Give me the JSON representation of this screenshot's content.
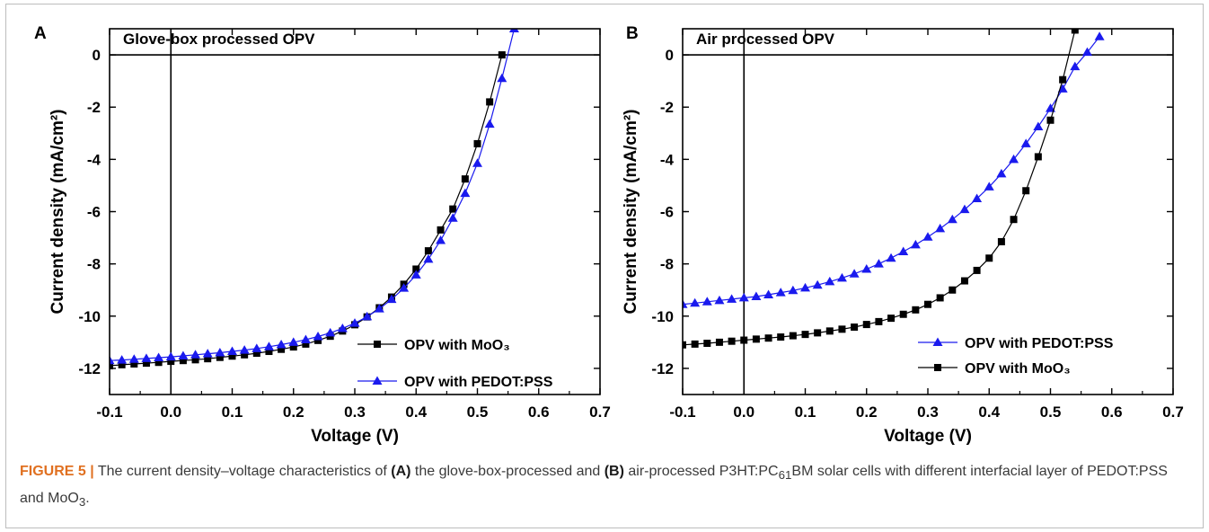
{
  "chart_data": [
    {
      "type": "line",
      "panel_label": "A",
      "inset_title": "Glove-box processed OPV",
      "xlabel": "Voltage (V)",
      "ylabel": "Current density (mA/cm²)",
      "xlim": [
        -0.1,
        0.7
      ],
      "ylim": [
        -13,
        1
      ],
      "xticks": [
        "-0.1",
        "0.0",
        "0.1",
        "0.2",
        "0.3",
        "0.4",
        "0.5",
        "0.6",
        "0.7"
      ],
      "yticks": [
        "0",
        "-2",
        "-4",
        "-6",
        "-8",
        "-10",
        "-12"
      ],
      "legend_position": "bottom-right",
      "series": [
        {
          "name": "OPV with MoO₃",
          "marker": "square",
          "color": "#000000",
          "points": [
            [
              -0.1,
              -11.9
            ],
            [
              -0.08,
              -11.86
            ],
            [
              -0.06,
              -11.83
            ],
            [
              -0.04,
              -11.8
            ],
            [
              -0.02,
              -11.77
            ],
            [
              0.0,
              -11.73
            ],
            [
              0.02,
              -11.7
            ],
            [
              0.04,
              -11.67
            ],
            [
              0.06,
              -11.63
            ],
            [
              0.08,
              -11.58
            ],
            [
              0.1,
              -11.53
            ],
            [
              0.12,
              -11.48
            ],
            [
              0.14,
              -11.42
            ],
            [
              0.16,
              -11.35
            ],
            [
              0.18,
              -11.27
            ],
            [
              0.2,
              -11.18
            ],
            [
              0.22,
              -11.07
            ],
            [
              0.24,
              -10.93
            ],
            [
              0.26,
              -10.77
            ],
            [
              0.28,
              -10.57
            ],
            [
              0.3,
              -10.33
            ],
            [
              0.32,
              -10.03
            ],
            [
              0.34,
              -9.68
            ],
            [
              0.36,
              -9.27
            ],
            [
              0.38,
              -8.78
            ],
            [
              0.4,
              -8.2
            ],
            [
              0.42,
              -7.5
            ],
            [
              0.44,
              -6.7
            ],
            [
              0.46,
              -5.9
            ],
            [
              0.48,
              -4.75
            ],
            [
              0.5,
              -3.4
            ],
            [
              0.52,
              -1.8
            ],
            [
              0.54,
              0.0
            ]
          ]
        },
        {
          "name": "OPV with PEDOT:PSS",
          "marker": "triangle",
          "color": "#1a1aee",
          "points": [
            [
              -0.1,
              -11.7
            ],
            [
              -0.08,
              -11.68
            ],
            [
              -0.06,
              -11.65
            ],
            [
              -0.04,
              -11.62
            ],
            [
              -0.02,
              -11.59
            ],
            [
              0.0,
              -11.56
            ],
            [
              0.02,
              -11.52
            ],
            [
              0.04,
              -11.48
            ],
            [
              0.06,
              -11.44
            ],
            [
              0.08,
              -11.4
            ],
            [
              0.1,
              -11.35
            ],
            [
              0.12,
              -11.3
            ],
            [
              0.14,
              -11.24
            ],
            [
              0.16,
              -11.17
            ],
            [
              0.18,
              -11.09
            ],
            [
              0.2,
              -11.0
            ],
            [
              0.22,
              -10.9
            ],
            [
              0.24,
              -10.78
            ],
            [
              0.26,
              -10.64
            ],
            [
              0.28,
              -10.47
            ],
            [
              0.3,
              -10.27
            ],
            [
              0.32,
              -10.02
            ],
            [
              0.34,
              -9.72
            ],
            [
              0.36,
              -9.36
            ],
            [
              0.38,
              -8.93
            ],
            [
              0.4,
              -8.42
            ],
            [
              0.42,
              -7.82
            ],
            [
              0.44,
              -7.1
            ],
            [
              0.46,
              -6.25
            ],
            [
              0.48,
              -5.3
            ],
            [
              0.5,
              -4.15
            ],
            [
              0.52,
              -2.65
            ],
            [
              0.54,
              -0.9
            ],
            [
              0.56,
              1.0
            ]
          ]
        }
      ]
    },
    {
      "type": "line",
      "panel_label": "B",
      "inset_title": "Air processed OPV",
      "xlabel": "Voltage (V)",
      "ylabel": "Current density (mA/cm²)",
      "xlim": [
        -0.1,
        0.7
      ],
      "ylim": [
        -13,
        1
      ],
      "xticks": [
        "-0.1",
        "0.0",
        "0.1",
        "0.2",
        "0.3",
        "0.4",
        "0.5",
        "0.6",
        "0.7"
      ],
      "yticks": [
        "0",
        "-2",
        "-4",
        "-6",
        "-8",
        "-10",
        "-12"
      ],
      "legend_position": "bottom-right",
      "series": [
        {
          "name": "OPV with PEDOT:PSS",
          "marker": "triangle",
          "color": "#1a1aee",
          "points": [
            [
              -0.1,
              -9.55
            ],
            [
              -0.08,
              -9.5
            ],
            [
              -0.06,
              -9.45
            ],
            [
              -0.04,
              -9.4
            ],
            [
              -0.02,
              -9.35
            ],
            [
              0.0,
              -9.3
            ],
            [
              0.02,
              -9.25
            ],
            [
              0.04,
              -9.18
            ],
            [
              0.06,
              -9.1
            ],
            [
              0.08,
              -9.02
            ],
            [
              0.1,
              -8.92
            ],
            [
              0.12,
              -8.81
            ],
            [
              0.14,
              -8.68
            ],
            [
              0.16,
              -8.54
            ],
            [
              0.18,
              -8.38
            ],
            [
              0.2,
              -8.2
            ],
            [
              0.22,
              -8.0
            ],
            [
              0.24,
              -7.78
            ],
            [
              0.26,
              -7.53
            ],
            [
              0.28,
              -7.27
            ],
            [
              0.3,
              -6.97
            ],
            [
              0.32,
              -6.65
            ],
            [
              0.34,
              -6.3
            ],
            [
              0.36,
              -5.92
            ],
            [
              0.38,
              -5.5
            ],
            [
              0.4,
              -5.05
            ],
            [
              0.42,
              -4.55
            ],
            [
              0.44,
              -4.0
            ],
            [
              0.46,
              -3.4
            ],
            [
              0.48,
              -2.75
            ],
            [
              0.5,
              -2.05
            ],
            [
              0.52,
              -1.3
            ],
            [
              0.54,
              -0.45
            ],
            [
              0.56,
              0.1
            ],
            [
              0.58,
              0.7
            ]
          ]
        },
        {
          "name": "OPV with MoO₃",
          "marker": "square",
          "color": "#000000",
          "points": [
            [
              -0.1,
              -11.1
            ],
            [
              -0.08,
              -11.07
            ],
            [
              -0.06,
              -11.04
            ],
            [
              -0.04,
              -11.0
            ],
            [
              -0.02,
              -10.96
            ],
            [
              0.0,
              -10.92
            ],
            [
              0.02,
              -10.88
            ],
            [
              0.04,
              -10.84
            ],
            [
              0.06,
              -10.8
            ],
            [
              0.08,
              -10.75
            ],
            [
              0.1,
              -10.7
            ],
            [
              0.12,
              -10.64
            ],
            [
              0.14,
              -10.57
            ],
            [
              0.16,
              -10.5
            ],
            [
              0.18,
              -10.42
            ],
            [
              0.2,
              -10.32
            ],
            [
              0.22,
              -10.21
            ],
            [
              0.24,
              -10.08
            ],
            [
              0.26,
              -9.93
            ],
            [
              0.28,
              -9.76
            ],
            [
              0.3,
              -9.55
            ],
            [
              0.32,
              -9.3
            ],
            [
              0.34,
              -9.0
            ],
            [
              0.36,
              -8.65
            ],
            [
              0.38,
              -8.25
            ],
            [
              0.4,
              -7.78
            ],
            [
              0.42,
              -7.15
            ],
            [
              0.44,
              -6.3
            ],
            [
              0.46,
              -5.2
            ],
            [
              0.48,
              -3.9
            ],
            [
              0.5,
              -2.5
            ],
            [
              0.52,
              -0.95
            ],
            [
              0.54,
              0.95
            ]
          ]
        }
      ]
    }
  ],
  "caption": {
    "figure_label": "FIGURE 5 |",
    "seg1": " The current density–voltage characteristics of ",
    "a_label": "(A)",
    "seg2": " the glove-box-processed and ",
    "b_label": "(B)",
    "seg3": " air-processed P3HT:PC",
    "sub1": "61",
    "seg4": "BM solar cells with different interfacial layer of PEDOT:PSS and MoO",
    "sub2": "3",
    "seg5": "."
  }
}
